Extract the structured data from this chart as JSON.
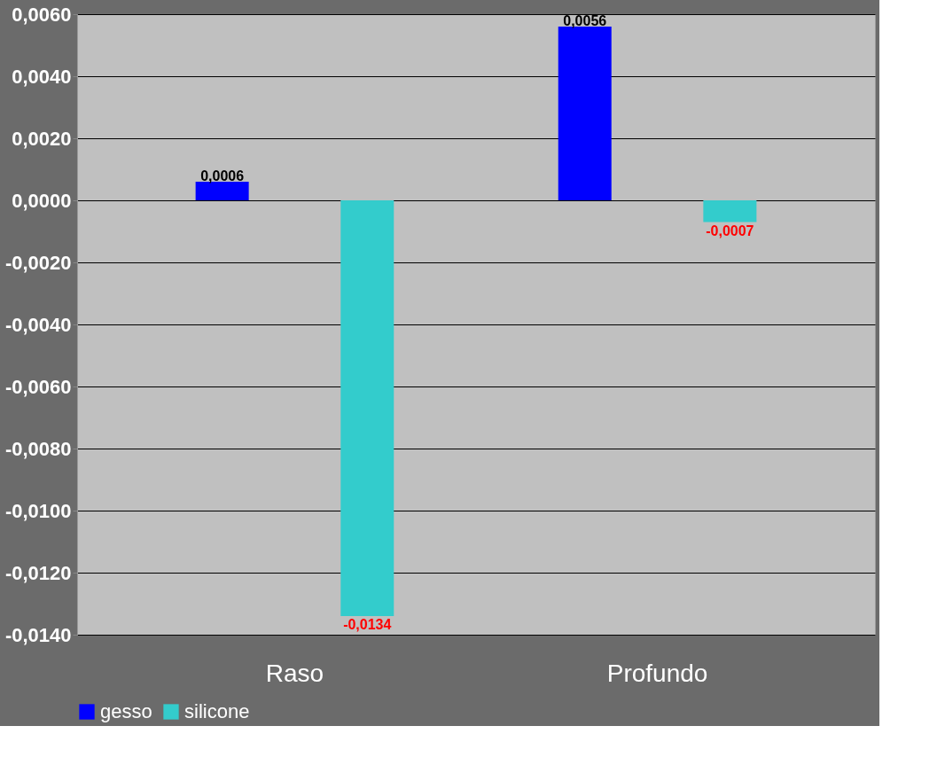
{
  "chart_data": {
    "type": "bar",
    "categories": [
      "Raso",
      "Profundo"
    ],
    "series": [
      {
        "name": "gesso",
        "color": "#0000ff",
        "values": [
          0.0006,
          0.0056
        ],
        "value_labels": [
          "0,0006",
          "0,0056"
        ]
      },
      {
        "name": "silicone",
        "color": "#33cccc",
        "values": [
          -0.0134,
          -0.0007
        ],
        "value_labels": [
          "-0,0134",
          "-0,0007"
        ]
      }
    ],
    "ylim": [
      -0.014,
      0.006
    ],
    "yticks": [
      {
        "value": 0.006,
        "label": "0,0060"
      },
      {
        "value": 0.004,
        "label": "0,0040"
      },
      {
        "value": 0.002,
        "label": "0,0020"
      },
      {
        "value": 0,
        "label": "0,0000"
      },
      {
        "value": -0.002,
        "label": "-0,0020"
      },
      {
        "value": -0.004,
        "label": "-0,0040"
      },
      {
        "value": -0.006,
        "label": "-0,0060"
      },
      {
        "value": -0.008,
        "label": "-0,0080"
      },
      {
        "value": -0.01,
        "label": "-0,0100"
      },
      {
        "value": -0.012,
        "label": "-0,0120"
      },
      {
        "value": -0.014,
        "label": "-0,0140"
      }
    ],
    "grid": "y",
    "legend": "bottom"
  }
}
